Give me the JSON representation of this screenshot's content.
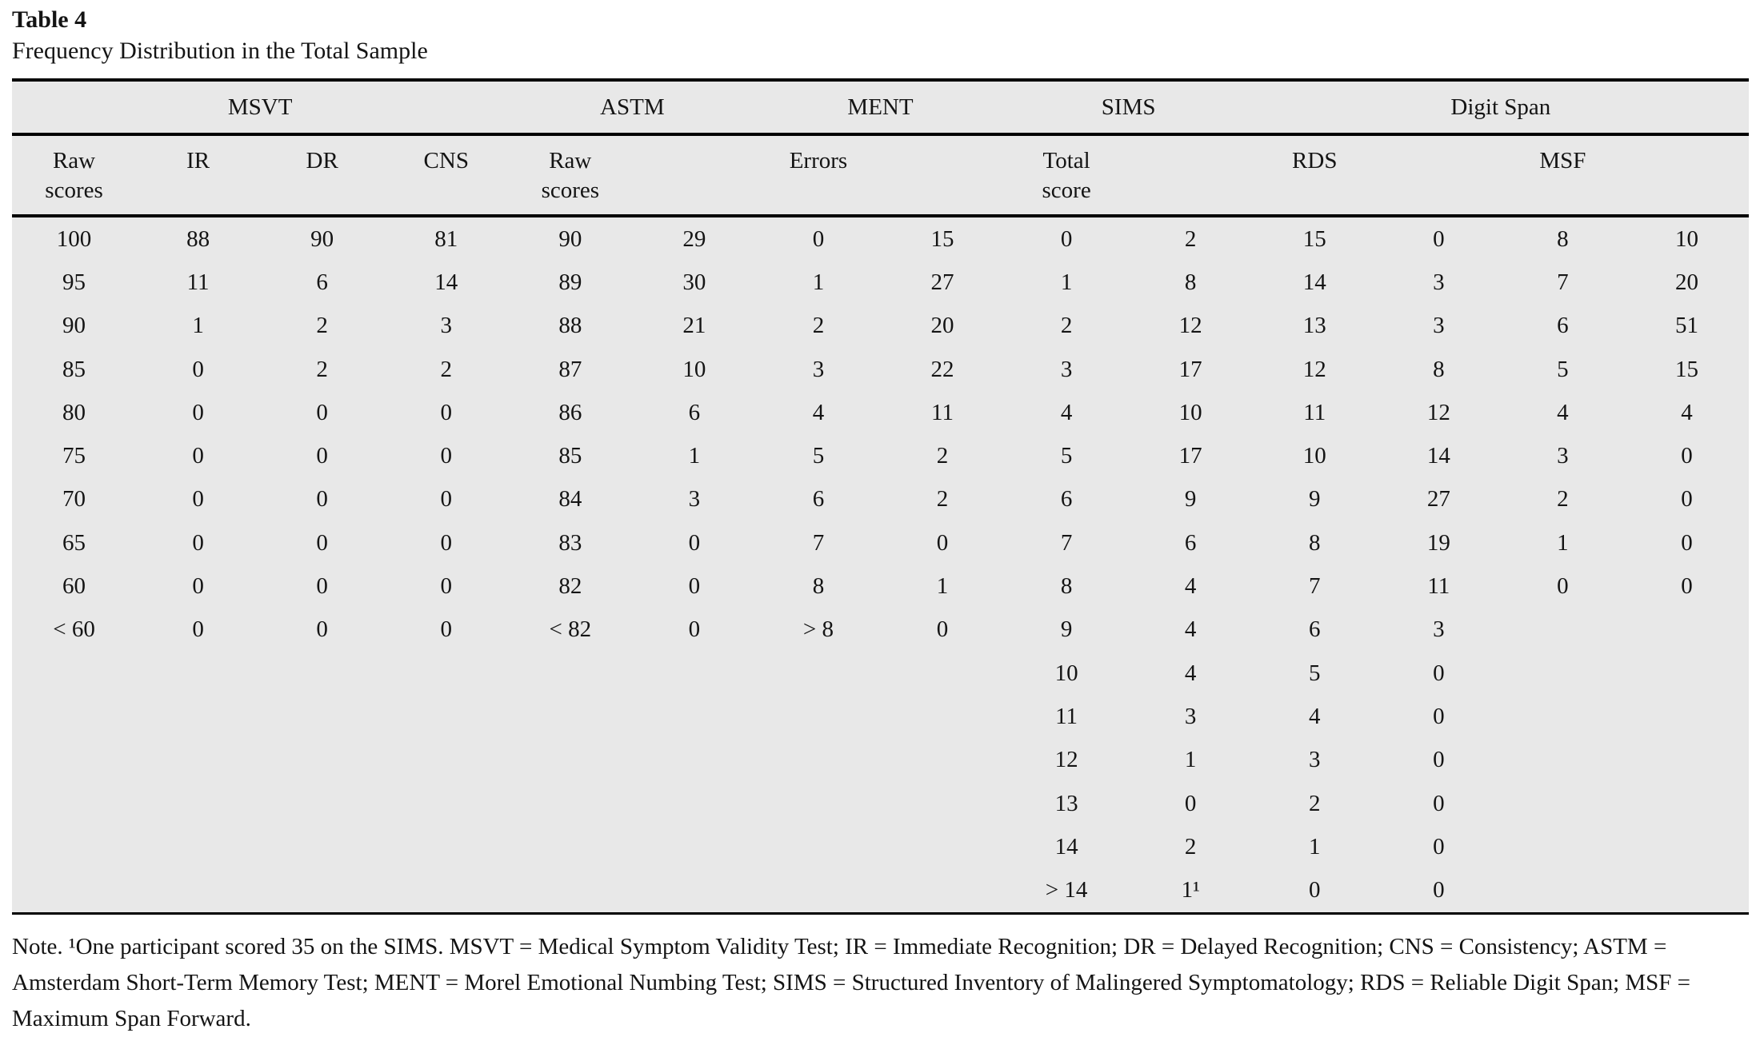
{
  "title": "Table 4",
  "subtitle": "Frequency Distribution in the Total Sample",
  "table": {
    "groups": [
      {
        "label": "MSVT",
        "span": 4
      },
      {
        "label": "ASTM",
        "span": 2
      },
      {
        "label": "MENT",
        "span": 2
      },
      {
        "label": "SIMS",
        "span": 2
      },
      {
        "label": "Digit Span",
        "span": 4
      }
    ],
    "subheaders": [
      "Raw\nscores",
      "IR",
      "DR",
      "CNS",
      "Raw\nscores",
      "",
      "Errors",
      "",
      "Total\nscore",
      "",
      "RDS",
      "",
      "MSF",
      ""
    ],
    "rows": [
      [
        "100",
        "88",
        "90",
        "81",
        "90",
        "29",
        "0",
        "15",
        "0",
        "2",
        "15",
        "0",
        "8",
        "10"
      ],
      [
        "95",
        "11",
        "6",
        "14",
        "89",
        "30",
        "1",
        "27",
        "1",
        "8",
        "14",
        "3",
        "7",
        "20"
      ],
      [
        "90",
        "1",
        "2",
        "3",
        "88",
        "21",
        "2",
        "20",
        "2",
        "12",
        "13",
        "3",
        "6",
        "51"
      ],
      [
        "85",
        "0",
        "2",
        "2",
        "87",
        "10",
        "3",
        "22",
        "3",
        "17",
        "12",
        "8",
        "5",
        "15"
      ],
      [
        "80",
        "0",
        "0",
        "0",
        "86",
        "6",
        "4",
        "11",
        "4",
        "10",
        "11",
        "12",
        "4",
        "4"
      ],
      [
        "75",
        "0",
        "0",
        "0",
        "85",
        "1",
        "5",
        "2",
        "5",
        "17",
        "10",
        "14",
        "3",
        "0"
      ],
      [
        "70",
        "0",
        "0",
        "0",
        "84",
        "3",
        "6",
        "2",
        "6",
        "9",
        "9",
        "27",
        "2",
        "0"
      ],
      [
        "65",
        "0",
        "0",
        "0",
        "83",
        "0",
        "7",
        "0",
        "7",
        "6",
        "8",
        "19",
        "1",
        "0"
      ],
      [
        "60",
        "0",
        "0",
        "0",
        "82",
        "0",
        "8",
        "1",
        "8",
        "4",
        "7",
        "11",
        "0",
        "0"
      ],
      [
        "< 60",
        "0",
        "0",
        "0",
        "< 82",
        "0",
        "> 8",
        "0",
        "9",
        "4",
        "6",
        "3",
        "",
        ""
      ],
      [
        "",
        "",
        "",
        "",
        "",
        "",
        "",
        "",
        "10",
        "4",
        "5",
        "0",
        "",
        ""
      ],
      [
        "",
        "",
        "",
        "",
        "",
        "",
        "",
        "",
        "11",
        "3",
        "4",
        "0",
        "",
        ""
      ],
      [
        "",
        "",
        "",
        "",
        "",
        "",
        "",
        "",
        "12",
        "1",
        "3",
        "0",
        "",
        ""
      ],
      [
        "",
        "",
        "",
        "",
        "",
        "",
        "",
        "",
        "13",
        "0",
        "2",
        "0",
        "",
        ""
      ],
      [
        "",
        "",
        "",
        "",
        "",
        "",
        "",
        "",
        "14",
        "2",
        "1",
        "0",
        "",
        ""
      ],
      [
        "",
        "",
        "",
        "",
        "",
        "",
        "",
        "",
        "> 14",
        "1¹",
        "0",
        "0",
        "",
        ""
      ]
    ]
  },
  "note": "Note. ¹One participant scored 35 on the SIMS. MSVT = Medical Symptom Validity Test; IR = Immediate Recognition; DR = Delayed Recognition; CNS = Consistency; ASTM = Amsterdam Short-Term Memory Test; MENT = Morel Emotional Numbing Test; SIMS = Structured Inventory of Malingered Symptomatology; RDS = Reliable Digit Span; MSF = Maximum Span Forward."
}
